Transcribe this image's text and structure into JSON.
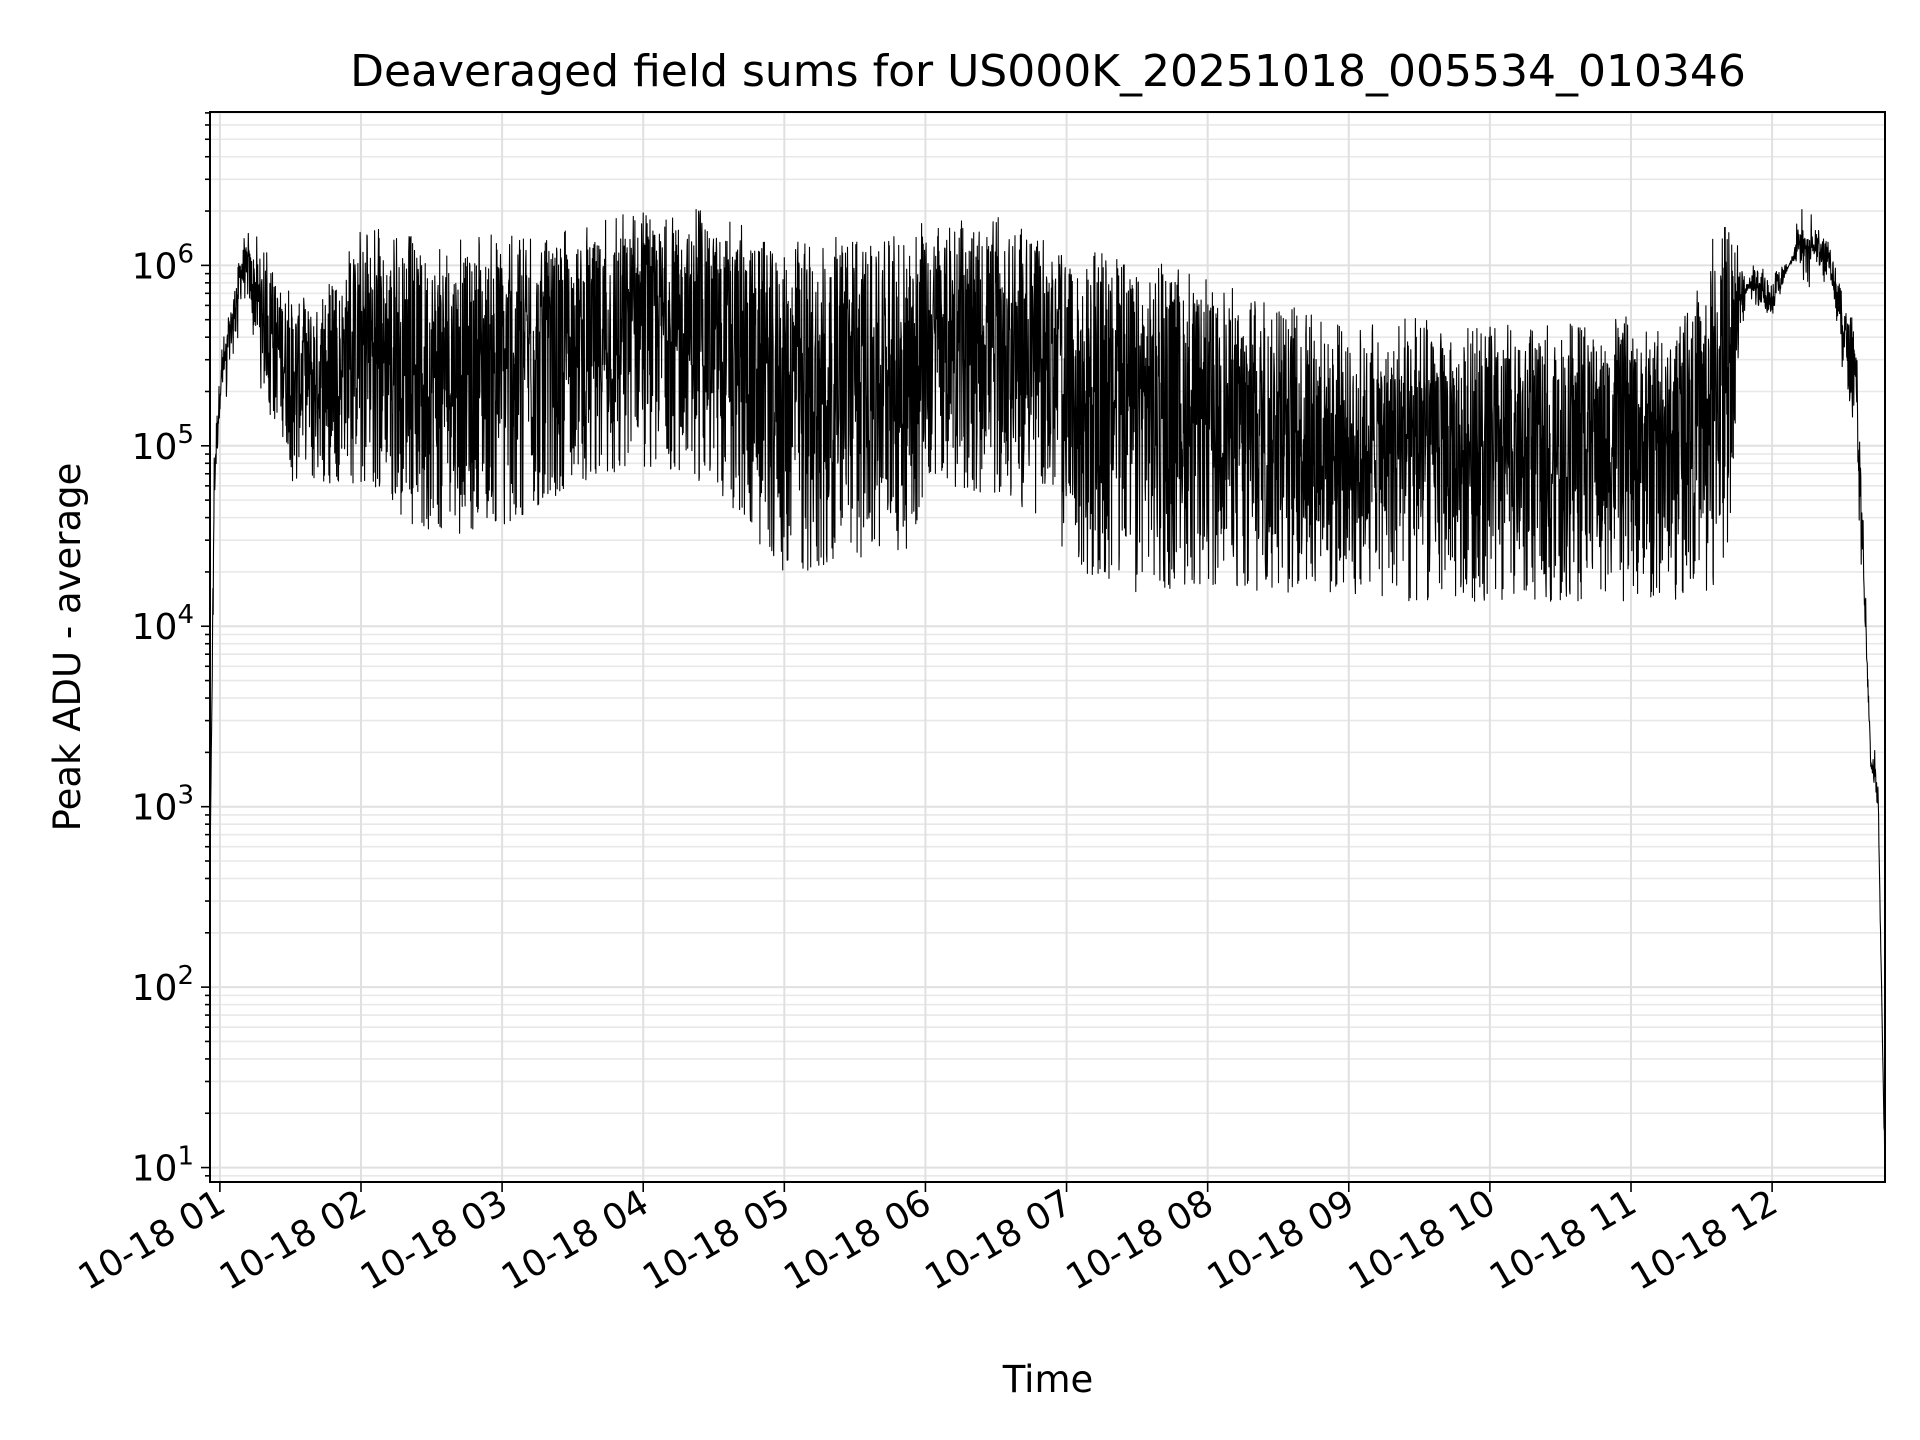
{
  "chart_data": {
    "type": "line",
    "title": "Deaveraged field sums for US000K_20251018_005534_010346",
    "xlabel": "Time",
    "ylabel": "Peak ADU - average",
    "yscale": "log",
    "ylim_exponent": [
      0.92,
      6.85
    ],
    "y_ticks": [
      {
        "base": "10",
        "exp": "1",
        "value": 10
      },
      {
        "base": "10",
        "exp": "2",
        "value": 100
      },
      {
        "base": "10",
        "exp": "3",
        "value": 1000
      },
      {
        "base": "10",
        "exp": "4",
        "value": 10000
      },
      {
        "base": "10",
        "exp": "5",
        "value": 100000
      },
      {
        "base": "10",
        "exp": "6",
        "value": 1000000
      }
    ],
    "xlim_hours": [
      0.93,
      12.8
    ],
    "x_ticks": [
      {
        "label": "10-18 01",
        "hour": 1
      },
      {
        "label": "10-18 02",
        "hour": 2
      },
      {
        "label": "10-18 03",
        "hour": 3
      },
      {
        "label": "10-18 04",
        "hour": 4
      },
      {
        "label": "10-18 05",
        "hour": 5
      },
      {
        "label": "10-18 06",
        "hour": 6
      },
      {
        "label": "10-18 07",
        "hour": 7
      },
      {
        "label": "10-18 08",
        "hour": 8
      },
      {
        "label": "10-18 09",
        "hour": 9
      },
      {
        "label": "10-18 10",
        "hour": 10
      },
      {
        "label": "10-18 11",
        "hour": 11
      },
      {
        "label": "10-18 12",
        "hour": 12
      }
    ],
    "grid": true,
    "line_color": "#000000",
    "series": [
      {
        "name": "Peak ADU - average",
        "note": "upper envelope / lower envelope of dense noisy signal (log10 ADU) by hour",
        "hours": [
          0.93,
          0.96,
          1.0,
          1.1,
          1.15,
          1.2,
          1.3,
          1.5,
          1.75,
          2.0,
          2.5,
          3.0,
          3.5,
          4.0,
          4.5,
          5.0,
          5.3,
          5.5,
          5.9,
          6.0,
          6.5,
          6.9,
          7.0,
          7.5,
          8.0,
          8.5,
          9.0,
          9.5,
          10.0,
          10.5,
          11.0,
          11.1,
          11.3,
          11.5,
          11.6,
          11.7,
          11.75,
          11.8,
          11.85,
          12.0,
          12.2,
          12.4,
          12.6,
          12.7,
          12.75,
          12.78,
          12.8
        ],
        "upper_log10": [
          2.6,
          5.0,
          5.4,
          5.85,
          6.1,
          6.1,
          6.0,
          5.8,
          5.75,
          6.1,
          6.05,
          6.05,
          6.1,
          6.2,
          6.2,
          6.05,
          6.05,
          6.05,
          6.05,
          6.15,
          6.15,
          6.0,
          5.95,
          5.95,
          5.8,
          5.7,
          5.55,
          5.6,
          5.55,
          5.55,
          5.6,
          5.55,
          5.5,
          5.8,
          6.1,
          6.1,
          6.0,
          6.0,
          5.8,
          5.7,
          6.2,
          6.15,
          5.5,
          3.25,
          3.15,
          1.8,
          0.92
        ],
        "lower_log10": [
          2.6,
          4.6,
          5.2,
          5.6,
          5.8,
          5.8,
          5.4,
          4.9,
          4.9,
          4.9,
          4.6,
          4.65,
          4.9,
          5.0,
          4.9,
          4.4,
          4.45,
          4.5,
          4.5,
          4.9,
          4.85,
          4.7,
          4.45,
          4.3,
          4.35,
          4.3,
          4.3,
          4.25,
          4.25,
          4.25,
          4.25,
          4.25,
          4.25,
          4.3,
          4.35,
          4.5,
          5.3,
          5.7,
          6.0,
          6.0,
          6.0,
          6.0,
          5.0,
          3.2,
          3.0,
          1.8,
          0.92
        ]
      }
    ]
  }
}
